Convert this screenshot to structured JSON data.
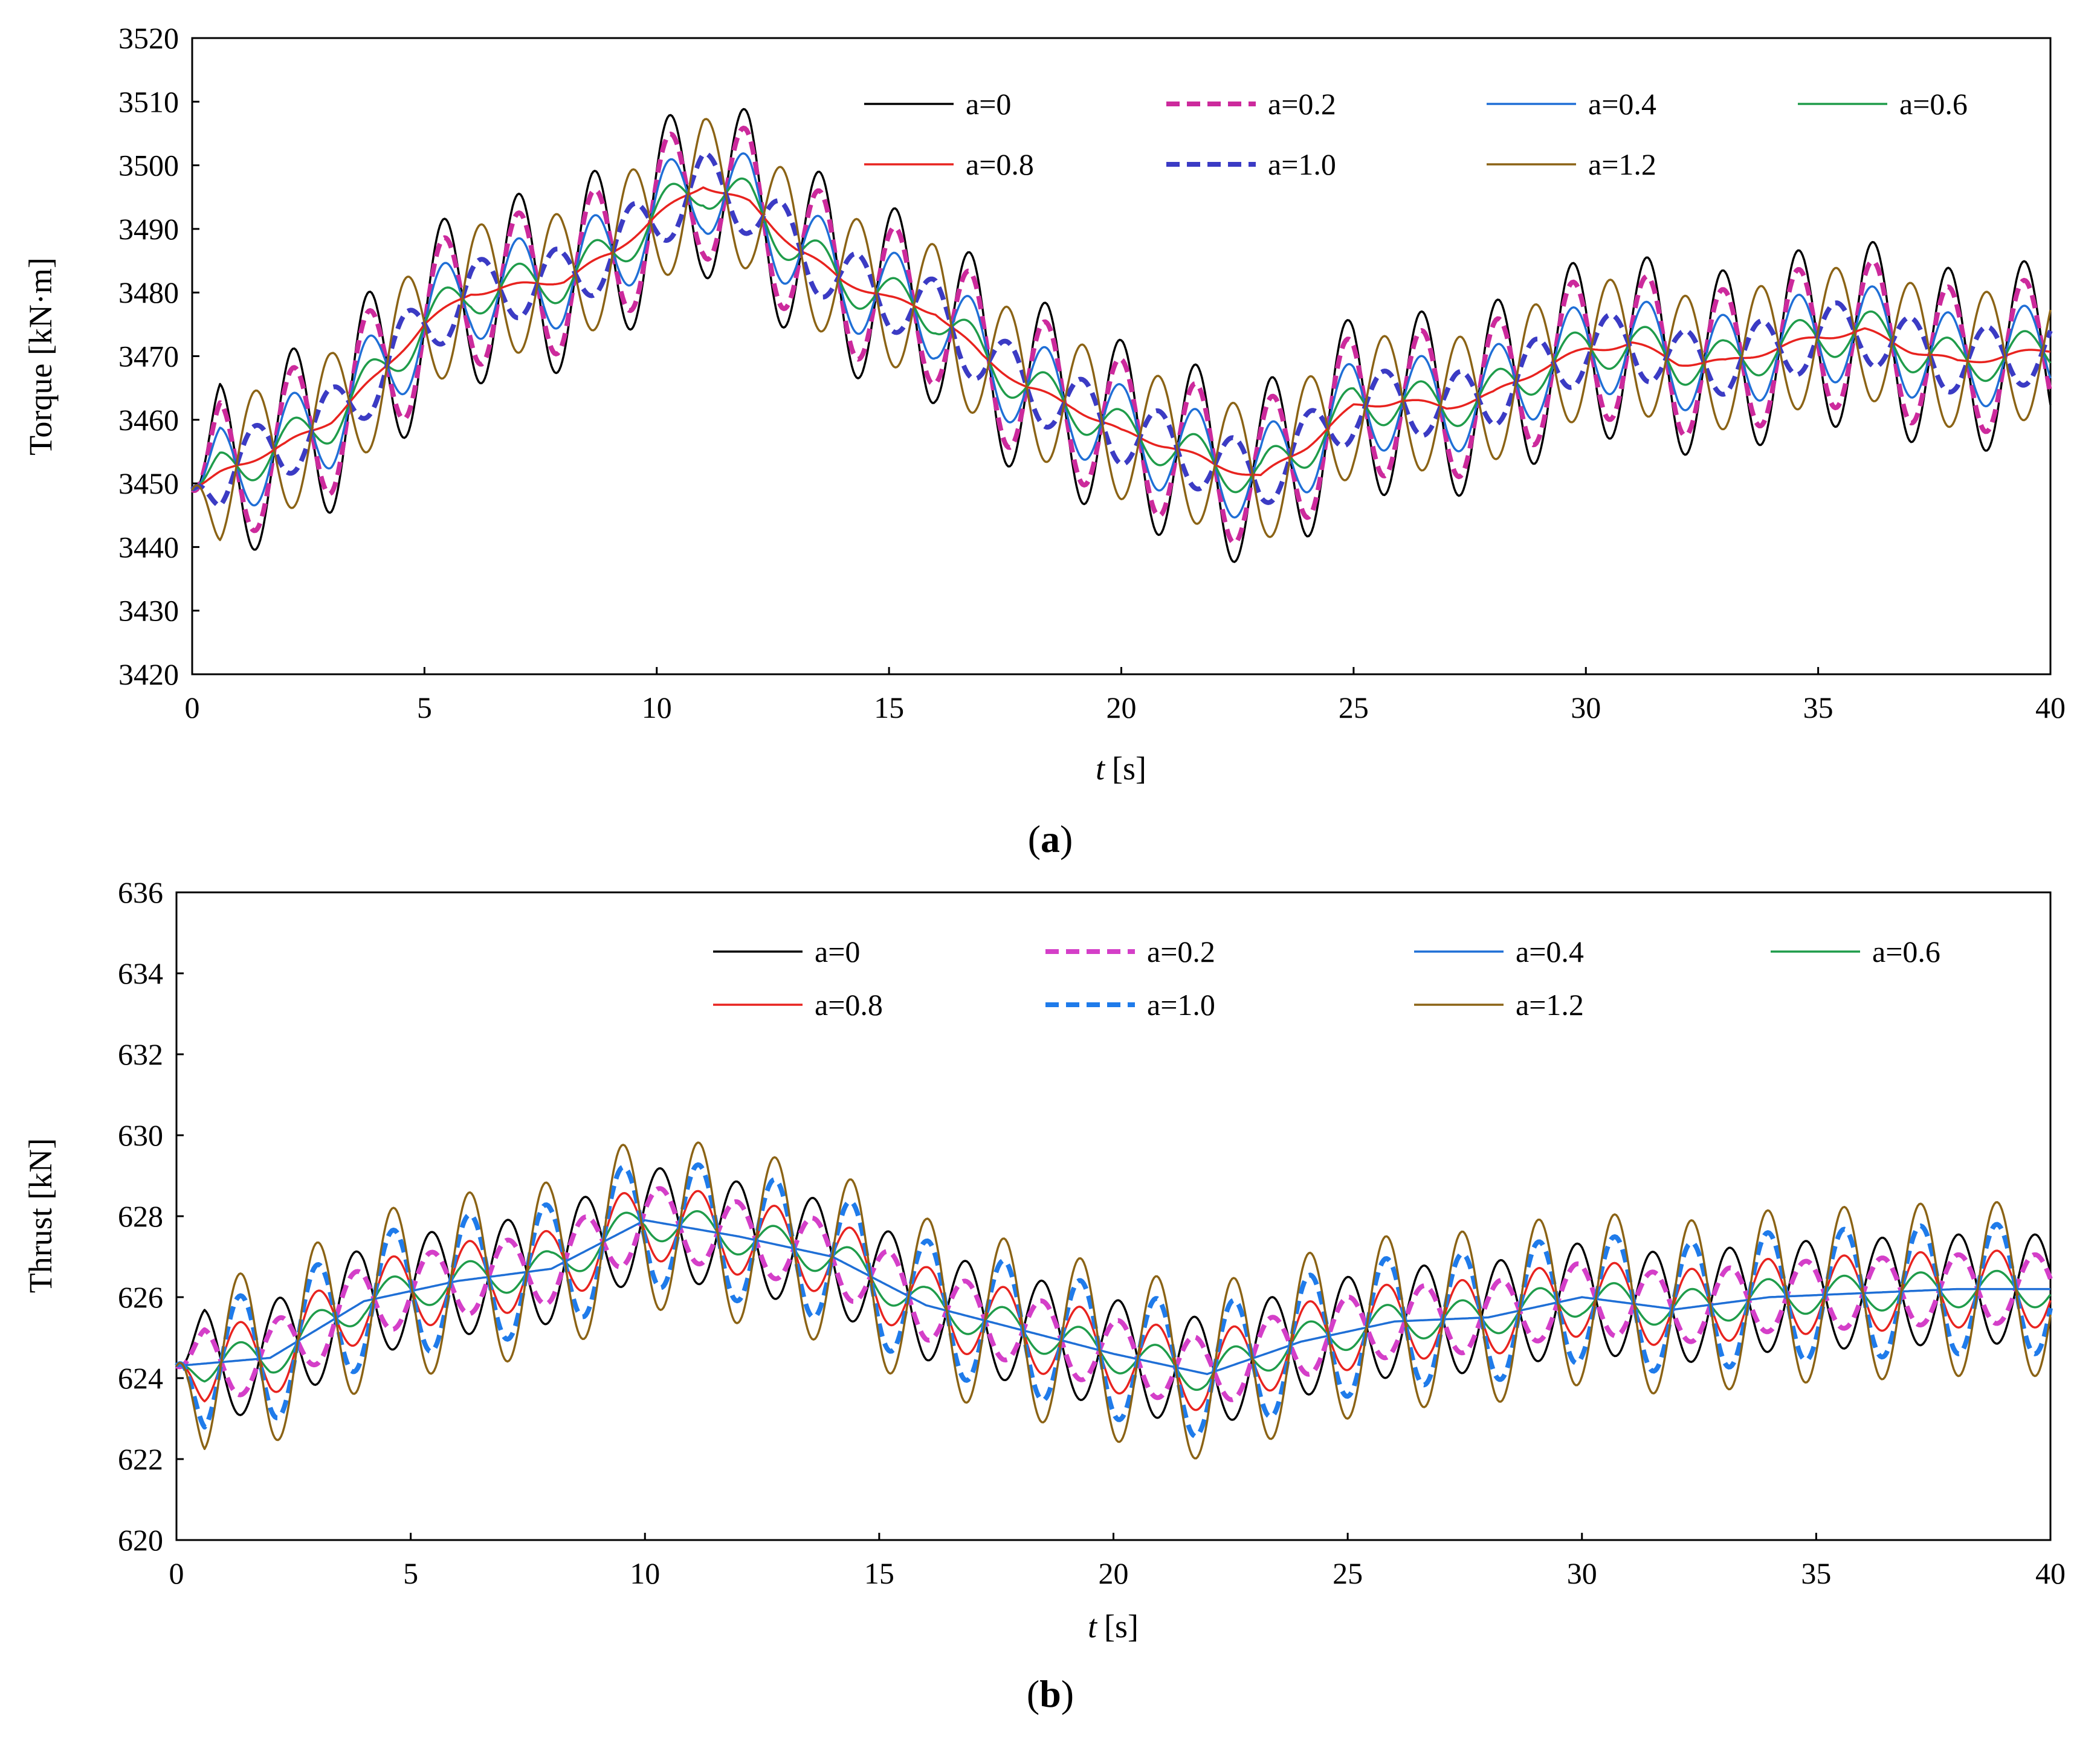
{
  "chart_data": [
    {
      "type": "line",
      "panel": "a",
      "caption_letter": "a",
      "xlabel_italic": "t",
      "xlabel_unit": "[s]",
      "ylabel": "Torque [kN·m]",
      "xlim": [
        0,
        40
      ],
      "ylim": [
        3420,
        3520
      ],
      "xticks": [
        "0",
        "5",
        "10",
        "15",
        "20",
        "25",
        "30",
        "35",
        "40"
      ],
      "yticks": [
        "3420",
        "3430",
        "3440",
        "3450",
        "3460",
        "3470",
        "3480",
        "3490",
        "3500",
        "3510",
        "3520"
      ],
      "legend_position": "top",
      "wave_period_s": 1.62,
      "baseline": {
        "t": [
          0,
          1,
          2,
          3,
          4,
          5,
          6,
          7,
          8,
          9,
          10,
          11,
          12,
          13,
          14,
          15,
          16,
          17,
          18,
          19,
          20,
          21,
          22,
          23,
          24,
          25,
          26,
          27,
          28,
          29,
          30,
          31,
          32,
          33,
          34,
          35,
          36,
          37,
          38,
          39,
          40
        ],
        "value": [
          3449,
          3453,
          3456,
          3460,
          3467,
          3475,
          3480,
          3481,
          3482,
          3486,
          3492,
          3497,
          3494,
          3487,
          3482,
          3479,
          3477,
          3470,
          3465,
          3462,
          3458,
          3456,
          3453,
          3451,
          3456,
          3462,
          3463,
          3462,
          3464,
          3468,
          3471,
          3472,
          3469,
          3469,
          3471,
          3473,
          3474,
          3471,
          3469,
          3470,
          3471
        ]
      },
      "series": [
        {
          "name": "a=0",
          "color": "#000000",
          "dash": "solid",
          "swing": 14.5
        },
        {
          "name": "a=0.2",
          "color": "#cc2a9c",
          "dash": "dash",
          "swing": 11.5
        },
        {
          "name": "a=0.4",
          "color": "#1f6fd6",
          "dash": "solid",
          "swing": 7.5
        },
        {
          "name": "a=0.6",
          "color": "#1f9c4a",
          "dash": "solid",
          "swing": 3.5
        },
        {
          "name": "a=0.8",
          "color": "#e8231f",
          "dash": "solid",
          "swing": 0.5
        },
        {
          "name": "a=1.0",
          "color": "#3b3bc4",
          "dash": "dash",
          "swing": -5.0
        },
        {
          "name": "a=1.2",
          "color": "#8b6315",
          "dash": "solid",
          "swing": -10.5
        }
      ]
    },
    {
      "type": "line",
      "panel": "b",
      "caption_letter": "b",
      "xlabel_italic": "t",
      "xlabel_unit": "[s]",
      "ylabel": "Thrust [kN]",
      "xlim": [
        0,
        40
      ],
      "ylim": [
        620,
        636
      ],
      "xticks": [
        "0",
        "5",
        "10",
        "15",
        "20",
        "25",
        "30",
        "35",
        "40"
      ],
      "yticks": [
        "620",
        "622",
        "624",
        "626",
        "628",
        "630",
        "632",
        "634",
        "636"
      ],
      "legend_position": "top",
      "wave_period_s": 1.63,
      "baseline": {
        "t": [
          0,
          2,
          4,
          6,
          8,
          10,
          12,
          14,
          16,
          18,
          20,
          22,
          24,
          26,
          28,
          30,
          32,
          34,
          36,
          38,
          40
        ],
        "value": [
          624.3,
          624.5,
          625.9,
          626.4,
          626.7,
          627.9,
          627.5,
          627.0,
          625.8,
          625.2,
          624.6,
          624.1,
          624.9,
          625.4,
          625.5,
          626.0,
          625.7,
          626.0,
          626.1,
          626.2,
          626.2
        ]
      },
      "series": [
        {
          "name": "a=0",
          "color": "#000000",
          "dash": "solid",
          "swing": 1.35
        },
        {
          "name": "a=0.2",
          "color": "#d43fc8",
          "dash": "dash",
          "swing": 0.85
        },
        {
          "name": "a=0.4",
          "color": "#1f6fd6",
          "dash": "solid",
          "swing": 0.0
        },
        {
          "name": "a=0.6",
          "color": "#1f9c4a",
          "dash": "solid",
          "swing": -0.45
        },
        {
          "name": "a=0.8",
          "color": "#e8231f",
          "dash": "solid",
          "swing": -0.95
        },
        {
          "name": "a=1.0",
          "color": "#1f7bea",
          "dash": "dash",
          "swing": -1.6
        },
        {
          "name": "a=1.2",
          "color": "#8b6315",
          "dash": "solid",
          "swing": -2.15
        }
      ]
    }
  ]
}
